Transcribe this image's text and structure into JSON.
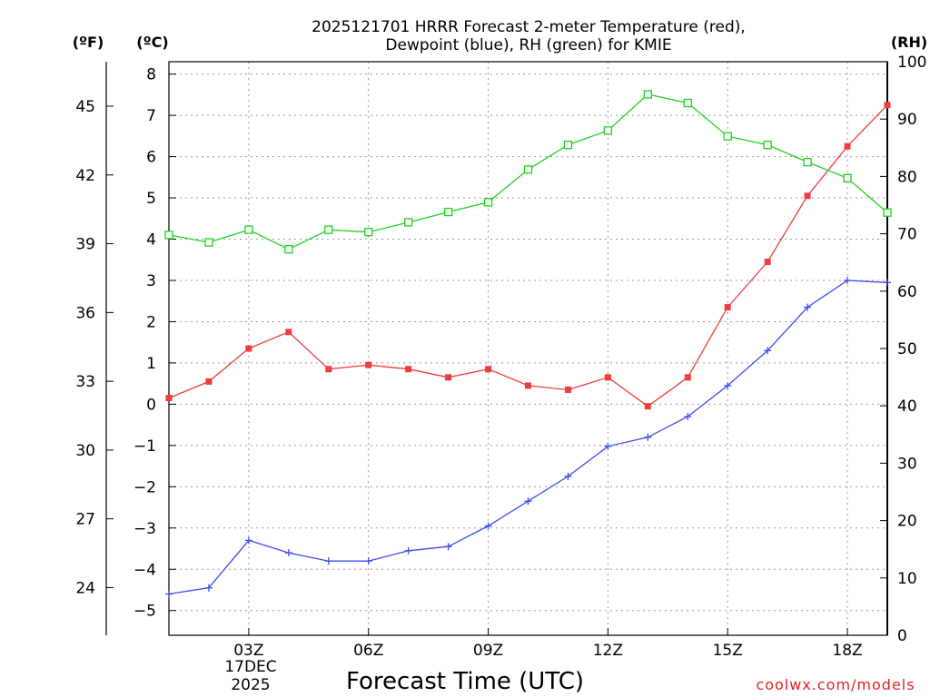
{
  "chart_data": {
    "type": "line",
    "title": "2025121701 HRRR Forecast 2-meter Temperature (red),",
    "subtitle": "Dewpoint (blue), RH (green) for KMIE",
    "xlabel": "Forecast Time (UTC)",
    "date_label_day": "17DEC",
    "date_label_year": "2025",
    "credit": "coolwx.com/models",
    "units": {
      "fahrenheit": "(ºF)",
      "celsius": "(ºC)",
      "rh": "(RH)"
    },
    "x": [
      1,
      2,
      3,
      4,
      5,
      6,
      7,
      8,
      9,
      10,
      11,
      12,
      13,
      14,
      15,
      16,
      17,
      18,
      19
    ],
    "xlim": [
      1,
      19
    ],
    "x_ticks": [
      {
        "value": 3,
        "label": "03Z"
      },
      {
        "value": 6,
        "label": "06Z"
      },
      {
        "value": 9,
        "label": "09Z"
      },
      {
        "value": 12,
        "label": "12Z"
      },
      {
        "value": 15,
        "label": "15Z"
      },
      {
        "value": 18,
        "label": "18Z"
      }
    ],
    "celsius_axis": {
      "ylim": [
        -5.6,
        8.3
      ],
      "ticks": [
        -5,
        -4,
        -3,
        -2,
        -1,
        0,
        1,
        2,
        3,
        4,
        5,
        6,
        7,
        8
      ],
      "tick_labels": [
        "−5",
        "−4",
        "−3",
        "−2",
        "−1",
        "0",
        "1",
        "2",
        "3",
        "4",
        "5",
        "6",
        "7",
        "8"
      ]
    },
    "fahrenheit_axis": {
      "ticks": [
        24,
        27,
        30,
        33,
        36,
        39,
        42,
        45
      ],
      "tick_labels": [
        "24",
        "27",
        "30",
        "33",
        "36",
        "39",
        "42",
        "45"
      ]
    },
    "rh_axis": {
      "ylim": [
        0,
        100
      ],
      "ticks": [
        0,
        10,
        20,
        30,
        40,
        50,
        60,
        70,
        80,
        90,
        100
      ],
      "tick_labels": [
        "0",
        "10",
        "20",
        "30",
        "40",
        "50",
        "60",
        "70",
        "80",
        "90",
        "100"
      ]
    },
    "series": [
      {
        "name": "Temperature",
        "axis": "celsius",
        "color": "#f03c3c",
        "marker": "filled-square",
        "values": [
          0.15,
          0.55,
          1.35,
          1.75,
          0.85,
          0.95,
          0.85,
          0.65,
          0.85,
          0.45,
          0.35,
          0.65,
          -0.05,
          0.65,
          2.35,
          3.45,
          5.05,
          6.25,
          7.25
        ]
      },
      {
        "name": "Dewpoint",
        "axis": "celsius",
        "color": "#3c4cf0",
        "marker": "plus",
        "values": [
          -4.6,
          -4.45,
          -3.3,
          -3.6,
          -3.8,
          -3.8,
          -3.55,
          -3.45,
          -2.95,
          -2.35,
          -1.75,
          -1.02,
          -0.8,
          -0.3,
          0.45,
          1.3,
          2.35,
          3.0,
          2.95
        ]
      },
      {
        "name": "RH",
        "axis": "rh",
        "color": "#1ed21e",
        "marker": "open-square",
        "values": [
          69.8,
          68.5,
          70.7,
          67.3,
          70.7,
          70.3,
          72.0,
          73.8,
          75.5,
          81.2,
          85.5,
          88.0,
          94.3,
          92.8,
          87.0,
          85.5,
          82.5,
          79.7,
          73.7
        ]
      }
    ]
  }
}
